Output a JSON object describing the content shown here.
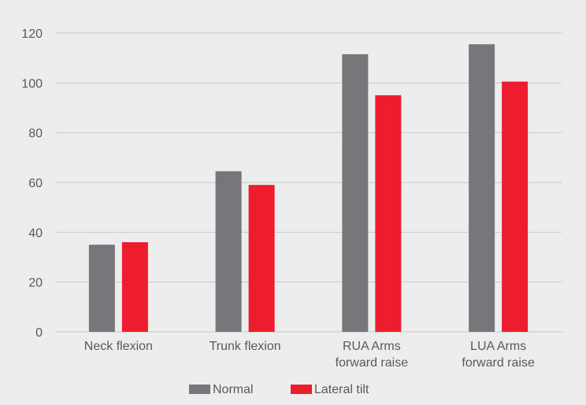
{
  "chart_data": {
    "type": "bar",
    "categories": [
      [
        "Neck flexion"
      ],
      [
        "Trunk flexion"
      ],
      [
        "RUA Arms",
        "forward raise"
      ],
      [
        "LUA Arms",
        "forward raise"
      ]
    ],
    "series": [
      {
        "name": "Normal",
        "color": "#77777b",
        "values": [
          35,
          64.5,
          111.5,
          115.5
        ]
      },
      {
        "name": "Lateral tilt",
        "color": "#ed1c2e",
        "values": [
          36,
          59,
          95,
          100.5
        ]
      }
    ],
    "ylim": [
      0,
      120
    ],
    "yticks": [
      0,
      20,
      40,
      60,
      80,
      100,
      120
    ],
    "grid": true,
    "legend_position": "bottom",
    "title": "",
    "xlabel": "",
    "ylabel": ""
  },
  "colors": {
    "background": "#ededed",
    "gridline": "#c8c8c8",
    "text": "#595959"
  }
}
